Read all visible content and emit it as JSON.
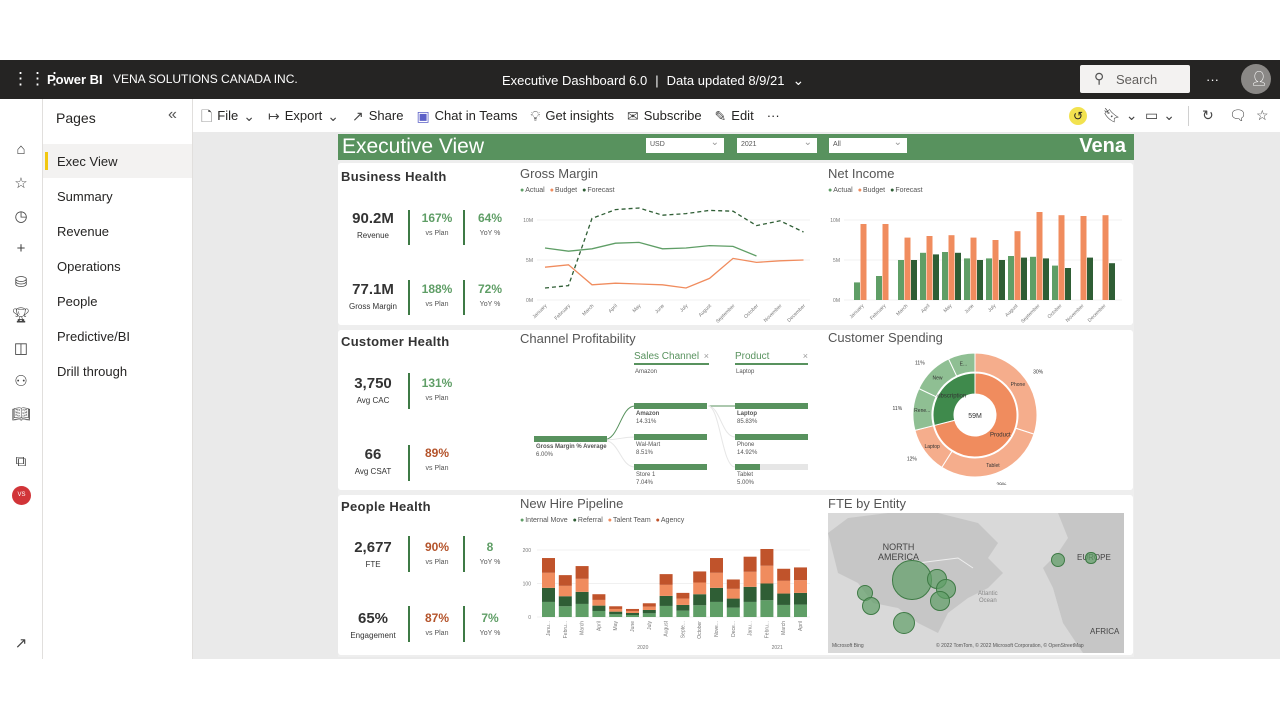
{
  "header": {
    "app": "Power BI",
    "org": "VENA SOLUTIONS CANADA INC.",
    "report": "Executive Dashboard 6.0",
    "separator": "|",
    "updated": "Data updated 8/9/21",
    "search_placeholder": "Search",
    "more": "···"
  },
  "toolbar": {
    "file": "File",
    "export": "Export",
    "share": "Share",
    "teams": "Chat in Teams",
    "insights": "Get insights",
    "subscribe": "Subscribe",
    "edit": "Edit",
    "more": "···"
  },
  "pages": {
    "title": "Pages",
    "items": [
      "Exec View",
      "Summary",
      "Revenue",
      "Operations",
      "People",
      "Predictive/BI",
      "Drill through"
    ],
    "selected": 0
  },
  "rail": {
    "avatar": "VS"
  },
  "banner": {
    "title": "Executive View",
    "currency": "USD",
    "year": "2021",
    "filter": "All",
    "logo": "Vena"
  },
  "colors": {
    "green": "#5f9e66",
    "dark_green": "#2f5e35",
    "orange": "#f08c5e",
    "rust": "#c0532b",
    "banner": "#58925e"
  },
  "business": {
    "title": "Business Health",
    "kpis": [
      {
        "value": "90.2M",
        "label": "Revenue",
        "plan": "167%",
        "plan_label": "vs Plan",
        "yoy": "64%",
        "yoy_label": "YoY %"
      },
      {
        "value": "77.1M",
        "label": "Gross Margin",
        "plan": "188%",
        "plan_label": "vs Plan",
        "yoy": "72%",
        "yoy_label": "YoY %"
      }
    ]
  },
  "customer": {
    "title": "Customer Health",
    "kpis": [
      {
        "value": "3,750",
        "label": "Avg CAC",
        "plan": "131%",
        "plan_label": "vs Plan"
      },
      {
        "value": "66",
        "label": "Avg CSAT",
        "plan": "89%",
        "plan_label": "vs Plan"
      }
    ]
  },
  "people": {
    "title": "People Health",
    "kpis": [
      {
        "value": "2,677",
        "label": "FTE",
        "plan": "90%",
        "plan_label": "vs Plan",
        "yoy": "8",
        "yoy_label": "YoY %"
      },
      {
        "value": "65%",
        "label": "Engagement",
        "plan": "87%",
        "plan_label": "vs Plan",
        "yoy": "7%",
        "yoy_label": "YoY %"
      }
    ]
  },
  "decomp": {
    "title": "Channel Profitability",
    "root": {
      "label": "Gross Margin % Average",
      "value": "6.00%"
    },
    "level1": {
      "header": "Sales Channel",
      "filter": "Amazon",
      "close": "×",
      "items": [
        {
          "label": "Amazon",
          "value": "14.31%",
          "fill": 1
        },
        {
          "label": "Wal-Mart",
          "value": "8.51%",
          "fill": 1
        },
        {
          "label": "Store 1",
          "value": "7.04%",
          "fill": 1
        }
      ]
    },
    "level2": {
      "header": "Product",
      "filter": "Laptop",
      "close": "×",
      "items": [
        {
          "label": "Laptop",
          "value": "85.83%",
          "fill": 1
        },
        {
          "label": "Phone",
          "value": "14.92%",
          "fill": 1
        },
        {
          "label": "Tablet",
          "value": "5.00%",
          "fill": 0.34
        }
      ]
    }
  },
  "map": {
    "title": "FTE by Entity",
    "labels": {
      "na1": "NORTH",
      "na2": "AMERICA",
      "eu": "EUROPE",
      "af": "AFRICA",
      "ocean1": "Atlantic",
      "ocean2": "Ocean"
    },
    "credit": "© 2022 TomTom, © 2022 Microsoft Corporation, © OpenStreetMap",
    "brand": "Microsoft Bing"
  },
  "chart_data": [
    {
      "type": "line",
      "title": "Gross Margin",
      "categories": [
        "January",
        "February",
        "March",
        "April",
        "May",
        "June",
        "July",
        "August",
        "September",
        "October",
        "November",
        "December"
      ],
      "yticks": [
        "0M",
        "5M",
        "10M"
      ],
      "ylim": [
        0,
        12
      ],
      "series": [
        {
          "name": "Actual",
          "color": "#5f9e66",
          "values": [
            6.5,
            6.1,
            6.4,
            7.1,
            7.2,
            6.4,
            6.5,
            6.8,
            6.7,
            5.5,
            null,
            null
          ]
        },
        {
          "name": "Budget",
          "color": "#f08c5e",
          "values": [
            4.1,
            4.4,
            1.9,
            2.1,
            2.0,
            1.9,
            1.5,
            2.7,
            5.2,
            4.7,
            4.9,
            5.0
          ]
        },
        {
          "name": "Forecast",
          "color": "#2f5e35",
          "dashed": true,
          "values": [
            1.5,
            1.8,
            10.2,
            11.3,
            11.5,
            10.6,
            10.8,
            11.2,
            11.1,
            9.3,
            9.9,
            8.5
          ]
        }
      ]
    },
    {
      "type": "bar",
      "title": "Net Income",
      "categories": [
        "January",
        "February",
        "March",
        "April",
        "May",
        "June",
        "July",
        "August",
        "September",
        "October",
        "November",
        "December"
      ],
      "yticks": [
        "0M",
        "5M",
        "10M"
      ],
      "ylim": [
        0,
        12
      ],
      "series": [
        {
          "name": "Actual",
          "color": "#5f9e66",
          "values": [
            2.2,
            3.0,
            5.0,
            5.9,
            6.0,
            5.2,
            5.2,
            5.5,
            5.4,
            4.3,
            null,
            null
          ]
        },
        {
          "name": "Budget",
          "color": "#f08c5e",
          "values": [
            9.5,
            9.5,
            7.8,
            8.0,
            8.1,
            7.8,
            7.5,
            8.6,
            11.0,
            10.6,
            10.5,
            10.6
          ]
        },
        {
          "name": "Forecast",
          "color": "#2f5e35",
          "values": [
            null,
            null,
            5.0,
            5.7,
            5.9,
            5.0,
            5.0,
            5.3,
            5.2,
            4.0,
            5.3,
            4.6
          ]
        }
      ]
    },
    {
      "type": "pie",
      "title": "Customer Spending",
      "center_label": "59M",
      "inner": [
        {
          "name": "Product",
          "value": 71,
          "color": "#f08c5e"
        },
        {
          "name": "Subscription",
          "value": 29,
          "color": "#3f8a4c"
        }
      ],
      "outer": [
        {
          "name": "Phone",
          "value": 30,
          "label": "30%",
          "color": "#f5ad8c"
        },
        {
          "name": "Tablet",
          "value": 29,
          "label": "29%",
          "color": "#f5ad8c"
        },
        {
          "name": "Laptop",
          "value": 12,
          "label": "12%",
          "color": "#f5ad8c"
        },
        {
          "name": "Rene...",
          "value": 11,
          "label": "11%",
          "color": "#8fbf93"
        },
        {
          "name": "New",
          "value": 11,
          "label": "11%",
          "color": "#8fbf93"
        },
        {
          "name": "E...",
          "value": 7,
          "label": "7%",
          "color": "#8fbf93"
        }
      ]
    },
    {
      "type": "bar",
      "stacked": true,
      "title": "New Hire Pipeline",
      "categories": [
        "Janu...",
        "Febru...",
        "March",
        "April",
        "May",
        "June",
        "July",
        "August",
        "Septe...",
        "October",
        "Nove...",
        "Dece...",
        "Janu...",
        "Febru...",
        "March",
        "April"
      ],
      "groups": [
        {
          "label": "2020",
          "count": 12
        },
        {
          "label": "2021",
          "count": 4
        }
      ],
      "yticks": [
        "0",
        "100",
        "200"
      ],
      "ylim": [
        0,
        200
      ],
      "series": [
        {
          "name": "Internal Move",
          "color": "#5f9e66",
          "values": [
            45,
            32,
            39,
            18,
            8,
            6,
            11,
            33,
            19,
            35,
            45,
            28,
            45,
            50,
            36,
            37
          ]
        },
        {
          "name": "Referral",
          "color": "#2f5e35",
          "values": [
            42,
            30,
            36,
            16,
            8,
            6,
            10,
            30,
            17,
            33,
            42,
            27,
            45,
            50,
            34,
            35
          ]
        },
        {
          "name": "Talent Team",
          "color": "#f08c5e",
          "values": [
            45,
            31,
            39,
            17,
            8,
            6,
            10,
            33,
            19,
            35,
            45,
            29,
            45,
            53,
            38,
            38
          ]
        },
        {
          "name": "Agency",
          "color": "#c0532b",
          "values": [
            44,
            32,
            38,
            17,
            8,
            6,
            10,
            32,
            17,
            33,
            44,
            28,
            45,
            50,
            36,
            38
          ]
        }
      ]
    }
  ]
}
